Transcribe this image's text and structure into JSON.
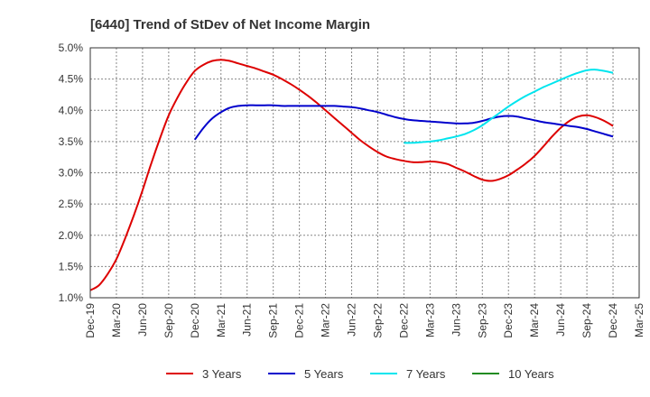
{
  "chart_data": {
    "type": "line",
    "title": "[6440]  Trend of StDev of Net Income Margin",
    "xlabel": "",
    "ylabel": "",
    "x": [
      "Dec-19",
      "Mar-20",
      "Jun-20",
      "Sep-20",
      "Dec-20",
      "Mar-21",
      "Jun-21",
      "Sep-21",
      "Dec-21",
      "Mar-22",
      "Jun-22",
      "Sep-22",
      "Dec-22",
      "Mar-23",
      "Jun-23",
      "Sep-23",
      "Dec-23",
      "Mar-24",
      "Jun-24",
      "Sep-24",
      "Dec-24",
      "Mar-25"
    ],
    "ylim": [
      1.0,
      5.0
    ],
    "yticks": [
      "1.0%",
      "1.5%",
      "2.0%",
      "2.5%",
      "3.0%",
      "3.5%",
      "4.0%",
      "4.5%",
      "5.0%"
    ],
    "grid": true,
    "legend_position": "bottom",
    "series": [
      {
        "name": "3 Years",
        "color": "#dd0000",
        "points": [
          [
            "Dec-19",
            1.12
          ],
          [
            "Jan-20",
            1.2
          ],
          [
            "Feb-20",
            1.38
          ],
          [
            "Mar-20",
            1.62
          ],
          [
            "Apr-20",
            1.95
          ],
          [
            "May-20",
            2.32
          ],
          [
            "Jun-20",
            2.72
          ],
          [
            "Jul-20",
            3.15
          ],
          [
            "Aug-20",
            3.55
          ],
          [
            "Sep-20",
            3.92
          ],
          [
            "Oct-20",
            4.2
          ],
          [
            "Nov-20",
            4.44
          ],
          [
            "Dec-20",
            4.63
          ],
          [
            "Jan-21",
            4.73
          ],
          [
            "Feb-21",
            4.79
          ],
          [
            "Mar-21",
            4.81
          ],
          [
            "Apr-21",
            4.79
          ],
          [
            "May-21",
            4.75
          ],
          [
            "Jun-21",
            4.71
          ],
          [
            "Jul-21",
            4.67
          ],
          [
            "Aug-21",
            4.62
          ],
          [
            "Sep-21",
            4.57
          ],
          [
            "Oct-21",
            4.5
          ],
          [
            "Nov-21",
            4.42
          ],
          [
            "Dec-21",
            4.33
          ],
          [
            "Jan-22",
            4.23
          ],
          [
            "Feb-22",
            4.12
          ],
          [
            "Mar-22",
            4.0
          ],
          [
            "Apr-22",
            3.88
          ],
          [
            "May-22",
            3.76
          ],
          [
            "Jun-22",
            3.64
          ],
          [
            "Jul-22",
            3.52
          ],
          [
            "Aug-22",
            3.42
          ],
          [
            "Sep-22",
            3.33
          ],
          [
            "Oct-22",
            3.26
          ],
          [
            "Nov-22",
            3.22
          ],
          [
            "Dec-22",
            3.19
          ],
          [
            "Jan-23",
            3.17
          ],
          [
            "Feb-23",
            3.17
          ],
          [
            "Mar-23",
            3.18
          ],
          [
            "Apr-23",
            3.17
          ],
          [
            "May-23",
            3.14
          ],
          [
            "Jun-23",
            3.08
          ],
          [
            "Jul-23",
            3.02
          ],
          [
            "Aug-23",
            2.95
          ],
          [
            "Sep-23",
            2.89
          ],
          [
            "Oct-23",
            2.87
          ],
          [
            "Nov-23",
            2.9
          ],
          [
            "Dec-23",
            2.96
          ],
          [
            "Jan-24",
            3.05
          ],
          [
            "Feb-24",
            3.15
          ],
          [
            "Mar-24",
            3.27
          ],
          [
            "Apr-24",
            3.42
          ],
          [
            "May-24",
            3.58
          ],
          [
            "Jun-24",
            3.72
          ],
          [
            "Jul-24",
            3.83
          ],
          [
            "Aug-24",
            3.9
          ],
          [
            "Sep-24",
            3.92
          ],
          [
            "Oct-24",
            3.89
          ],
          [
            "Nov-24",
            3.83
          ],
          [
            "Dec-24",
            3.75
          ]
        ]
      },
      {
        "name": "5 Years",
        "color": "#0000cc",
        "points": [
          [
            "Dec-20",
            3.53
          ],
          [
            "Jan-21",
            3.72
          ],
          [
            "Feb-21",
            3.87
          ],
          [
            "Mar-21",
            3.97
          ],
          [
            "Apr-21",
            4.04
          ],
          [
            "May-21",
            4.07
          ],
          [
            "Jun-21",
            4.08
          ],
          [
            "Jul-21",
            4.08
          ],
          [
            "Aug-21",
            4.08
          ],
          [
            "Sep-21",
            4.08
          ],
          [
            "Oct-21",
            4.07
          ],
          [
            "Nov-21",
            4.07
          ],
          [
            "Dec-21",
            4.07
          ],
          [
            "Jan-22",
            4.07
          ],
          [
            "Feb-22",
            4.07
          ],
          [
            "Mar-22",
            4.07
          ],
          [
            "Apr-22",
            4.07
          ],
          [
            "May-22",
            4.06
          ],
          [
            "Jun-22",
            4.05
          ],
          [
            "Jul-22",
            4.03
          ],
          [
            "Aug-22",
            4.0
          ],
          [
            "Sep-22",
            3.97
          ],
          [
            "Oct-22",
            3.93
          ],
          [
            "Nov-22",
            3.89
          ],
          [
            "Dec-22",
            3.86
          ],
          [
            "Jan-23",
            3.84
          ],
          [
            "Feb-23",
            3.83
          ],
          [
            "Mar-23",
            3.82
          ],
          [
            "Apr-23",
            3.81
          ],
          [
            "May-23",
            3.8
          ],
          [
            "Jun-23",
            3.79
          ],
          [
            "Jul-23",
            3.79
          ],
          [
            "Aug-23",
            3.8
          ],
          [
            "Sep-23",
            3.83
          ],
          [
            "Oct-23",
            3.87
          ],
          [
            "Nov-23",
            3.9
          ],
          [
            "Dec-23",
            3.91
          ],
          [
            "Jan-24",
            3.9
          ],
          [
            "Feb-24",
            3.87
          ],
          [
            "Mar-24",
            3.84
          ],
          [
            "Apr-24",
            3.81
          ],
          [
            "May-24",
            3.79
          ],
          [
            "Jun-24",
            3.77
          ],
          [
            "Jul-24",
            3.75
          ],
          [
            "Aug-24",
            3.73
          ],
          [
            "Sep-24",
            3.7
          ],
          [
            "Oct-24",
            3.66
          ],
          [
            "Nov-24",
            3.62
          ],
          [
            "Dec-24",
            3.58
          ]
        ]
      },
      {
        "name": "7 Years",
        "color": "#00e5ee",
        "points": [
          [
            "Dec-22",
            3.48
          ],
          [
            "Jan-23",
            3.48
          ],
          [
            "Feb-23",
            3.49
          ],
          [
            "Mar-23",
            3.5
          ],
          [
            "Apr-23",
            3.52
          ],
          [
            "May-23",
            3.55
          ],
          [
            "Jun-23",
            3.58
          ],
          [
            "Jul-23",
            3.62
          ],
          [
            "Aug-23",
            3.68
          ],
          [
            "Sep-23",
            3.76
          ],
          [
            "Oct-23",
            3.86
          ],
          [
            "Nov-23",
            3.96
          ],
          [
            "Dec-23",
            4.06
          ],
          [
            "Jan-24",
            4.15
          ],
          [
            "Feb-24",
            4.23
          ],
          [
            "Mar-24",
            4.3
          ],
          [
            "Apr-24",
            4.37
          ],
          [
            "May-24",
            4.43
          ],
          [
            "Jun-24",
            4.49
          ],
          [
            "Jul-24",
            4.55
          ],
          [
            "Aug-24",
            4.6
          ],
          [
            "Sep-24",
            4.64
          ],
          [
            "Oct-24",
            4.65
          ],
          [
            "Nov-24",
            4.63
          ],
          [
            "Dec-24",
            4.6
          ]
        ]
      },
      {
        "name": "10 Years",
        "color": "#228b22",
        "points": []
      }
    ]
  }
}
